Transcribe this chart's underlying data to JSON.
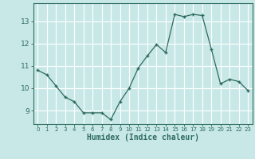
{
  "x": [
    0,
    1,
    2,
    3,
    4,
    5,
    6,
    7,
    8,
    9,
    10,
    11,
    12,
    13,
    14,
    15,
    16,
    17,
    18,
    19,
    20,
    21,
    22,
    23
  ],
  "y": [
    10.8,
    10.6,
    10.1,
    9.6,
    9.4,
    8.9,
    8.9,
    8.9,
    8.6,
    9.4,
    10.0,
    10.9,
    11.45,
    11.95,
    11.6,
    13.3,
    13.2,
    13.3,
    13.25,
    11.75,
    10.2,
    10.4,
    10.3,
    9.9
  ],
  "line_color": "#2e6b5e",
  "marker": "+",
  "bg_color": "#c8e8e8",
  "grid_color": "#ffffff",
  "tick_color": "#2e6b5e",
  "xlabel": "Humidex (Indice chaleur)",
  "xlabel_fontsize": 7,
  "ytick_labels": [
    "9",
    "10",
    "11",
    "12",
    "13"
  ],
  "ytick_values": [
    9,
    10,
    11,
    12,
    13
  ],
  "ylim": [
    8.4,
    13.8
  ],
  "xlim": [
    -0.5,
    23.5
  ]
}
